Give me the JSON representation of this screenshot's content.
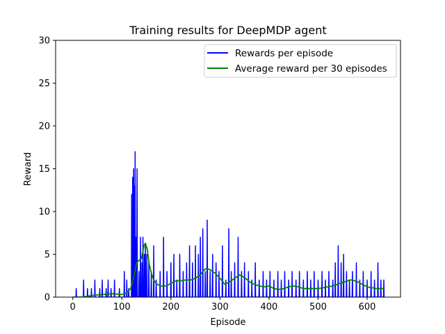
{
  "chart_data": {
    "type": "line",
    "title": "Training results for DeepMDP agent",
    "xlabel": "Episode",
    "ylabel": "Reward",
    "xlim": [
      -35,
      668
    ],
    "ylim": [
      0,
      30
    ],
    "xticks": [
      0,
      100,
      200,
      300,
      400,
      500,
      600
    ],
    "yticks": [
      0,
      5,
      10,
      15,
      20,
      25,
      30
    ],
    "grid": false,
    "legend_position": "top-right",
    "series": [
      {
        "name": "Rewards per episode",
        "color": "#0000ff",
        "kind": "episode-spikes",
        "x_range": [
          0,
          634
        ],
        "approx_spikes": [
          {
            "x": 7,
            "y": 1
          },
          {
            "x": 22,
            "y": 2
          },
          {
            "x": 30,
            "y": 1
          },
          {
            "x": 38,
            "y": 1
          },
          {
            "x": 45,
            "y": 2
          },
          {
            "x": 55,
            "y": 1
          },
          {
            "x": 60,
            "y": 2
          },
          {
            "x": 68,
            "y": 1
          },
          {
            "x": 72,
            "y": 2
          },
          {
            "x": 78,
            "y": 1
          },
          {
            "x": 85,
            "y": 2
          },
          {
            "x": 95,
            "y": 1
          },
          {
            "x": 105,
            "y": 3
          },
          {
            "x": 110,
            "y": 2
          },
          {
            "x": 114,
            "y": 1
          },
          {
            "x": 120,
            "y": 12
          },
          {
            "x": 122,
            "y": 14
          },
          {
            "x": 124,
            "y": 15
          },
          {
            "x": 126,
            "y": 13
          },
          {
            "x": 127,
            "y": 17
          },
          {
            "x": 129,
            "y": 7
          },
          {
            "x": 131,
            "y": 15
          },
          {
            "x": 135,
            "y": 3
          },
          {
            "x": 138,
            "y": 7
          },
          {
            "x": 141,
            "y": 4
          },
          {
            "x": 143,
            "y": 7
          },
          {
            "x": 146,
            "y": 5
          },
          {
            "x": 148,
            "y": 6
          },
          {
            "x": 151,
            "y": 5
          },
          {
            "x": 155,
            "y": 4
          },
          {
            "x": 160,
            "y": 3
          },
          {
            "x": 165,
            "y": 6
          },
          {
            "x": 170,
            "y": 2
          },
          {
            "x": 178,
            "y": 3
          },
          {
            "x": 185,
            "y": 7
          },
          {
            "x": 192,
            "y": 3
          },
          {
            "x": 200,
            "y": 4
          },
          {
            "x": 206,
            "y": 5
          },
          {
            "x": 212,
            "y": 2
          },
          {
            "x": 218,
            "y": 5
          },
          {
            "x": 225,
            "y": 3
          },
          {
            "x": 232,
            "y": 4
          },
          {
            "x": 238,
            "y": 6
          },
          {
            "x": 244,
            "y": 4
          },
          {
            "x": 250,
            "y": 6
          },
          {
            "x": 256,
            "y": 5
          },
          {
            "x": 260,
            "y": 7
          },
          {
            "x": 265,
            "y": 8
          },
          {
            "x": 270,
            "y": 3
          },
          {
            "x": 274,
            "y": 9
          },
          {
            "x": 280,
            "y": 3
          },
          {
            "x": 285,
            "y": 5
          },
          {
            "x": 292,
            "y": 4
          },
          {
            "x": 298,
            "y": 3
          },
          {
            "x": 305,
            "y": 6
          },
          {
            "x": 312,
            "y": 2
          },
          {
            "x": 318,
            "y": 8
          },
          {
            "x": 323,
            "y": 3
          },
          {
            "x": 330,
            "y": 4
          },
          {
            "x": 337,
            "y": 7
          },
          {
            "x": 344,
            "y": 3
          },
          {
            "x": 350,
            "y": 4
          },
          {
            "x": 358,
            "y": 3
          },
          {
            "x": 365,
            "y": 2
          },
          {
            "x": 372,
            "y": 4
          },
          {
            "x": 380,
            "y": 2
          },
          {
            "x": 388,
            "y": 3
          },
          {
            "x": 395,
            "y": 2
          },
          {
            "x": 402,
            "y": 3
          },
          {
            "x": 410,
            "y": 2
          },
          {
            "x": 418,
            "y": 3
          },
          {
            "x": 425,
            "y": 2
          },
          {
            "x": 432,
            "y": 3
          },
          {
            "x": 440,
            "y": 2
          },
          {
            "x": 447,
            "y": 3
          },
          {
            "x": 455,
            "y": 2
          },
          {
            "x": 462,
            "y": 3
          },
          {
            "x": 470,
            "y": 2
          },
          {
            "x": 478,
            "y": 3
          },
          {
            "x": 485,
            "y": 2
          },
          {
            "x": 492,
            "y": 3
          },
          {
            "x": 500,
            "y": 2
          },
          {
            "x": 508,
            "y": 3
          },
          {
            "x": 515,
            "y": 2
          },
          {
            "x": 522,
            "y": 3
          },
          {
            "x": 530,
            "y": 2
          },
          {
            "x": 535,
            "y": 4
          },
          {
            "x": 541,
            "y": 6
          },
          {
            "x": 547,
            "y": 4
          },
          {
            "x": 552,
            "y": 5
          },
          {
            "x": 558,
            "y": 3
          },
          {
            "x": 564,
            "y": 2
          },
          {
            "x": 570,
            "y": 3
          },
          {
            "x": 578,
            "y": 4
          },
          {
            "x": 585,
            "y": 2
          },
          {
            "x": 592,
            "y": 3
          },
          {
            "x": 600,
            "y": 2
          },
          {
            "x": 608,
            "y": 3
          },
          {
            "x": 615,
            "y": 2
          },
          {
            "x": 622,
            "y": 4
          },
          {
            "x": 628,
            "y": 2
          },
          {
            "x": 634,
            "y": 2
          }
        ]
      },
      {
        "name": "Average reward per 30 episodes",
        "color": "#008000",
        "kind": "smoothed-line",
        "x": [
          0,
          20,
          40,
          60,
          80,
          100,
          110,
          118,
          125,
          130,
          135,
          140,
          145,
          148,
          152,
          156,
          160,
          165,
          170,
          175,
          180,
          190,
          200,
          210,
          220,
          230,
          240,
          250,
          260,
          265,
          270,
          275,
          280,
          290,
          300,
          310,
          320,
          330,
          340,
          350,
          360,
          370,
          380,
          390,
          400,
          410,
          420,
          430,
          440,
          450,
          460,
          470,
          480,
          490,
          500,
          510,
          520,
          530,
          540,
          550,
          560,
          565,
          570,
          580,
          590,
          600,
          610,
          620,
          634
        ],
        "values": [
          0,
          0,
          0.2,
          0.3,
          0.4,
          0.3,
          0.5,
          1.0,
          2.5,
          4.0,
          4.3,
          4.5,
          6.0,
          6.3,
          5.5,
          3.8,
          2.8,
          2.0,
          1.6,
          1.4,
          1.3,
          1.3,
          1.6,
          1.9,
          1.9,
          2.0,
          2.0,
          2.2,
          2.6,
          3.0,
          3.3,
          3.3,
          3.2,
          2.8,
          2.2,
          1.5,
          1.8,
          2.2,
          2.6,
          2.3,
          1.8,
          1.5,
          1.3,
          1.2,
          1.3,
          1.0,
          0.9,
          1.0,
          1.2,
          1.3,
          1.2,
          1.0,
          1.0,
          1.0,
          1.0,
          1.1,
          1.2,
          1.3,
          1.5,
          1.7,
          1.9,
          2.0,
          2.0,
          1.8,
          1.5,
          1.2,
          1.1,
          1.0,
          1.0
        ]
      }
    ]
  }
}
